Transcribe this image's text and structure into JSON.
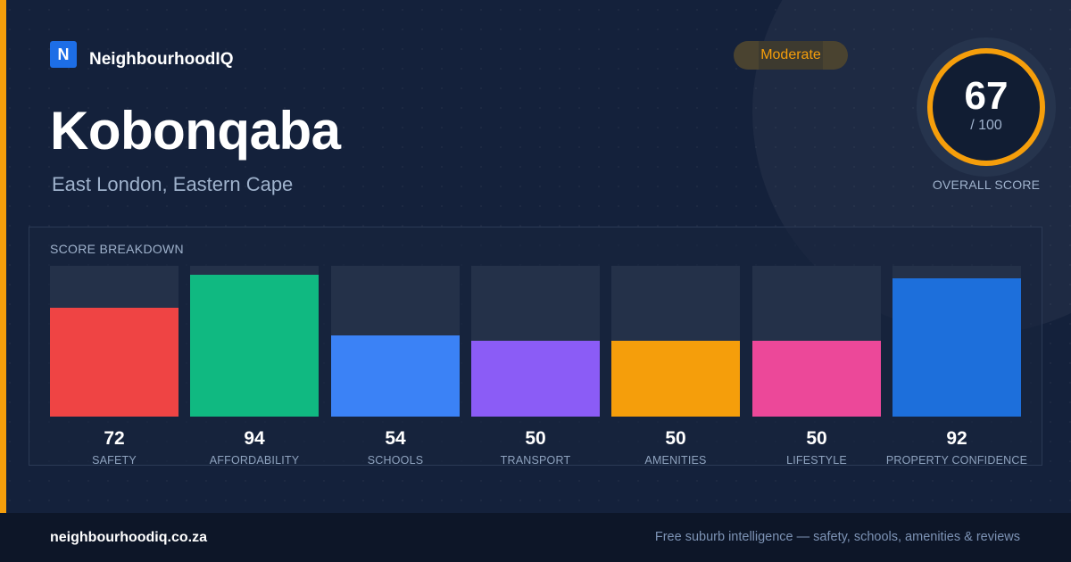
{
  "brand": {
    "logo_letter": "N",
    "name": "NeighbourhoodIQ"
  },
  "suburb": {
    "name": "Kobonqaba",
    "location": "East London, Eastern Cape"
  },
  "rating": {
    "badge": "Moderate",
    "score": "67",
    "max": "/ 100",
    "score_value": 67,
    "label": "OVERALL SCORE",
    "ring_color": "#f59e0b"
  },
  "breakdown": {
    "title": "SCORE BREAKDOWN",
    "items": [
      {
        "label": "SAFETY",
        "value": "72",
        "score": 72,
        "color": "#ef4444"
      },
      {
        "label": "AFFORDABILITY",
        "value": "94",
        "score": 94,
        "color": "#10b981"
      },
      {
        "label": "SCHOOLS",
        "value": "54",
        "score": 54,
        "color": "#3b82f6"
      },
      {
        "label": "TRANSPORT",
        "value": "50",
        "score": 50,
        "color": "#8b5cf6"
      },
      {
        "label": "AMENITIES",
        "value": "50",
        "score": 50,
        "color": "#f59e0b"
      },
      {
        "label": "LIFESTYLE",
        "value": "50",
        "score": 50,
        "color": "#ec4899"
      },
      {
        "label": "PROPERTY CONFIDENCE",
        "value": "92",
        "score": 92,
        "color": "#1d6fdb"
      }
    ]
  },
  "footer": {
    "url": "neighbourhoodiq.co.za",
    "tagline": "Free suburb intelligence — safety, schools, amenities & reviews"
  }
}
